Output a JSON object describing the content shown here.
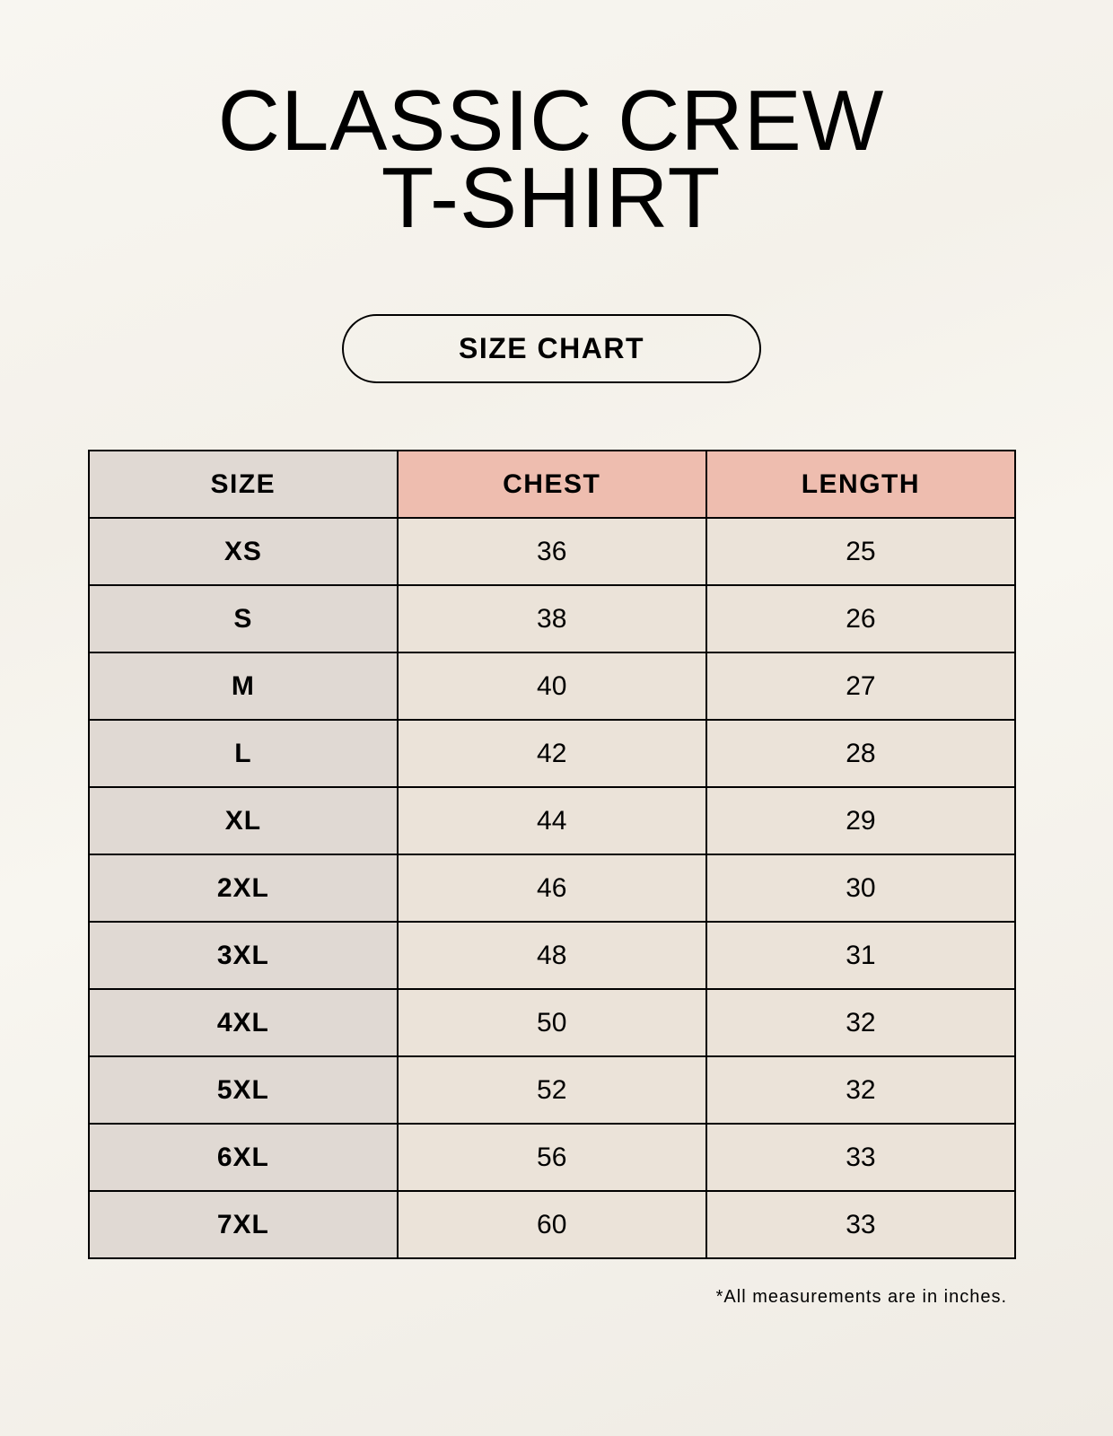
{
  "title_lines": [
    "CLASSIC CREW",
    "T-SHIRT"
  ],
  "badge": "SIZE CHART",
  "table": {
    "headers": [
      "SIZE",
      "CHEST",
      "LENGTH"
    ],
    "rows": [
      [
        "XS",
        "36",
        "25"
      ],
      [
        "S",
        "38",
        "26"
      ],
      [
        "M",
        "40",
        "27"
      ],
      [
        "L",
        "42",
        "28"
      ],
      [
        "XL",
        "44",
        "29"
      ],
      [
        "2XL",
        "46",
        "30"
      ],
      [
        "3XL",
        "48",
        "31"
      ],
      [
        "4XL",
        "50",
        "32"
      ],
      [
        "5XL",
        "52",
        "32"
      ],
      [
        "6XL",
        "56",
        "33"
      ],
      [
        "7XL",
        "60",
        "33"
      ]
    ]
  },
  "footnote": "*All measurements are in inches.",
  "colors": {
    "header_accent": "#eebdaf",
    "size_column": "#e0d9d3",
    "value_cells": "#ebe3d9"
  }
}
